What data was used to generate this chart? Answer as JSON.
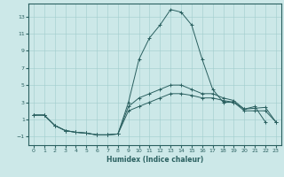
{
  "xlabel": "Humidex (Indice chaleur)",
  "ylabel": "",
  "bg_color": "#cce8e8",
  "line_color": "#2a6060",
  "grid_color": "#a0cccc",
  "xlim": [
    -0.5,
    23.5
  ],
  "ylim": [
    -2.0,
    14.5
  ],
  "yticks": [
    -1,
    1,
    3,
    5,
    7,
    9,
    11,
    13
  ],
  "xticks": [
    0,
    1,
    2,
    3,
    4,
    5,
    6,
    7,
    8,
    9,
    10,
    11,
    12,
    13,
    14,
    15,
    16,
    17,
    18,
    19,
    20,
    21,
    22,
    23
  ],
  "series": [
    {
      "x": [
        0,
        1,
        2,
        3,
        4,
        5,
        6,
        7,
        8,
        9,
        10,
        11,
        12,
        13,
        14,
        15,
        16,
        17,
        18,
        19,
        20,
        21,
        22,
        23
      ],
      "y": [
        1.5,
        1.5,
        0.3,
        -0.3,
        -0.5,
        -0.6,
        -0.8,
        -0.8,
        -0.7,
        3.0,
        8.0,
        10.5,
        12.0,
        13.8,
        13.5,
        12.0,
        8.0,
        4.5,
        3.0,
        3.0,
        2.2,
        2.5,
        0.7,
        null
      ]
    },
    {
      "x": [
        0,
        1,
        2,
        3,
        4,
        5,
        6,
        7,
        8,
        9,
        10,
        11,
        12,
        13,
        14,
        15,
        16,
        17,
        18,
        19,
        20,
        21,
        22,
        23
      ],
      "y": [
        1.5,
        1.5,
        0.3,
        -0.3,
        -0.5,
        -0.6,
        -0.8,
        -0.8,
        -0.7,
        2.5,
        3.5,
        4.0,
        4.5,
        5.0,
        5.0,
        4.5,
        4.0,
        4.0,
        3.5,
        3.2,
        2.2,
        2.3,
        2.4,
        0.7
      ]
    },
    {
      "x": [
        0,
        1,
        2,
        3,
        4,
        5,
        6,
        7,
        8,
        9,
        10,
        11,
        12,
        13,
        14,
        15,
        16,
        17,
        18,
        19,
        20,
        21,
        22,
        23
      ],
      "y": [
        1.5,
        1.5,
        0.3,
        -0.3,
        -0.5,
        -0.6,
        -0.8,
        -0.8,
        -0.7,
        2.0,
        2.5,
        3.0,
        3.5,
        4.0,
        4.0,
        3.8,
        3.5,
        3.5,
        3.2,
        3.0,
        2.0,
        2.0,
        2.0,
        0.7
      ]
    }
  ]
}
